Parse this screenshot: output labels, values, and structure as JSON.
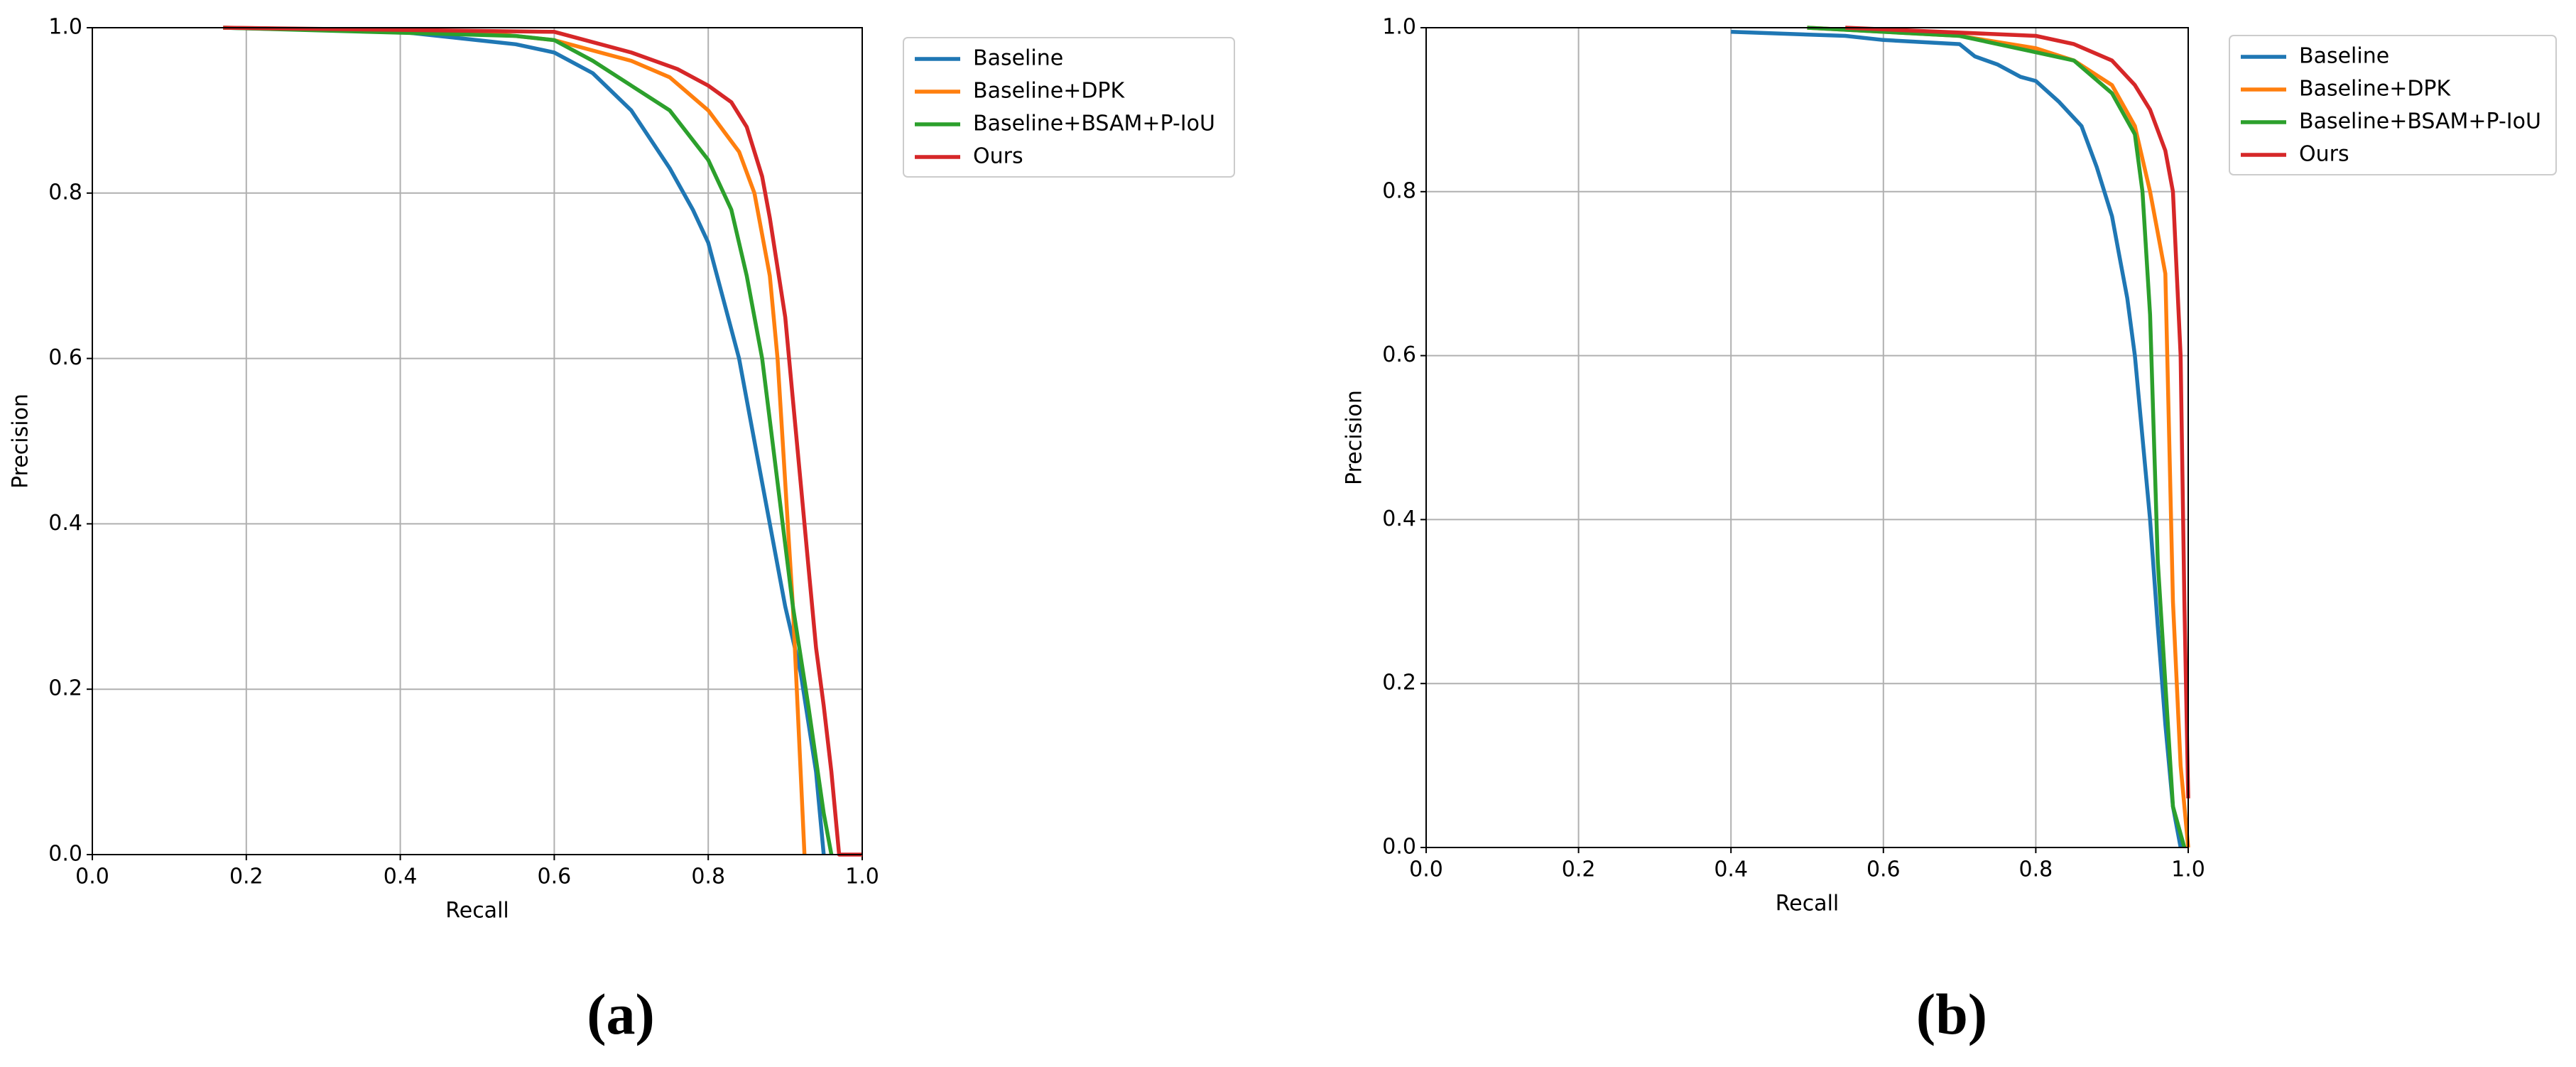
{
  "chart_data": [
    {
      "type": "line",
      "xlabel": "Recall",
      "ylabel": "Precision",
      "caption": "(a)",
      "xlim": [
        0,
        1
      ],
      "ylim": [
        0,
        1
      ],
      "xticks": [
        {
          "value": 0,
          "label": "0.0"
        },
        0.2,
        0.4,
        0.6,
        0.8,
        {
          "value": 1,
          "label": "1.0"
        }
      ],
      "yticks": [
        {
          "value": 0,
          "label": "0.0"
        },
        0.2,
        0.4,
        0.6,
        0.8,
        {
          "value": 1,
          "label": "1.0"
        }
      ],
      "grid": true,
      "legend": "outside-upper-right",
      "series": [
        {
          "name": "Baseline",
          "color": "#1f77b4",
          "x": [
            0.17,
            0.4,
            0.5,
            0.55,
            0.6,
            0.65,
            0.7,
            0.75,
            0.78,
            0.8,
            0.82,
            0.84,
            0.86,
            0.88,
            0.9,
            0.92,
            0.94,
            0.95
          ],
          "values": [
            1.0,
            0.995,
            0.985,
            0.98,
            0.97,
            0.945,
            0.9,
            0.83,
            0.78,
            0.74,
            0.67,
            0.6,
            0.5,
            0.4,
            0.3,
            0.22,
            0.1,
            0.0
          ]
        },
        {
          "name": "Baseline+DPK",
          "color": "#ff7f0e",
          "x": [
            0.17,
            0.5,
            0.6,
            0.7,
            0.75,
            0.8,
            0.84,
            0.86,
            0.88,
            0.89,
            0.9,
            0.91,
            0.92,
            0.925
          ],
          "values": [
            1.0,
            0.995,
            0.985,
            0.96,
            0.94,
            0.9,
            0.85,
            0.8,
            0.7,
            0.6,
            0.45,
            0.3,
            0.1,
            0.0
          ]
        },
        {
          "name": "Baseline+BSAM+P-IoU",
          "color": "#2ca02c",
          "x": [
            0.17,
            0.55,
            0.6,
            0.65,
            0.7,
            0.75,
            0.8,
            0.83,
            0.85,
            0.87,
            0.89,
            0.91,
            0.93,
            0.95,
            0.96
          ],
          "values": [
            1.0,
            0.99,
            0.985,
            0.96,
            0.93,
            0.9,
            0.84,
            0.78,
            0.7,
            0.6,
            0.45,
            0.3,
            0.18,
            0.05,
            0.0
          ]
        },
        {
          "name": "Ours",
          "color": "#d62728",
          "x": [
            0.17,
            0.6,
            0.7,
            0.76,
            0.8,
            0.83,
            0.85,
            0.87,
            0.88,
            0.9,
            0.91,
            0.92,
            0.93,
            0.94,
            0.95,
            0.96,
            0.97,
            1.0
          ],
          "values": [
            1.0,
            0.995,
            0.97,
            0.95,
            0.93,
            0.91,
            0.88,
            0.82,
            0.77,
            0.65,
            0.55,
            0.45,
            0.35,
            0.25,
            0.18,
            0.1,
            0.0,
            0.0
          ]
        }
      ]
    },
    {
      "type": "line",
      "xlabel": "Recall",
      "ylabel": "Precision",
      "caption": "(b)",
      "xlim": [
        0,
        1
      ],
      "ylim": [
        0,
        1
      ],
      "xticks": [
        {
          "value": 0,
          "label": "0.0"
        },
        0.2,
        0.4,
        0.6,
        0.8,
        {
          "value": 1,
          "label": "1.0"
        }
      ],
      "yticks": [
        {
          "value": 0,
          "label": "0.0"
        },
        0.2,
        0.4,
        0.6,
        0.8,
        {
          "value": 1,
          "label": "1.0"
        }
      ],
      "grid": true,
      "legend": "outside-upper-right",
      "series": [
        {
          "name": "Baseline",
          "color": "#1f77b4",
          "x": [
            0.4,
            0.55,
            0.6,
            0.7,
            0.72,
            0.75,
            0.78,
            0.8,
            0.83,
            0.86,
            0.88,
            0.9,
            0.91,
            0.92,
            0.93,
            0.94,
            0.95,
            0.96,
            0.97,
            0.98,
            0.99
          ],
          "values": [
            0.995,
            0.99,
            0.985,
            0.98,
            0.965,
            0.955,
            0.94,
            0.935,
            0.91,
            0.88,
            0.83,
            0.77,
            0.72,
            0.67,
            0.6,
            0.5,
            0.4,
            0.27,
            0.15,
            0.05,
            0.0
          ]
        },
        {
          "name": "Baseline+DPK",
          "color": "#ff7f0e",
          "x": [
            0.5,
            0.7,
            0.8,
            0.85,
            0.9,
            0.93,
            0.95,
            0.96,
            0.97,
            0.975,
            0.98,
            0.99,
            1.0
          ],
          "values": [
            1.0,
            0.99,
            0.975,
            0.96,
            0.93,
            0.88,
            0.8,
            0.75,
            0.7,
            0.5,
            0.3,
            0.1,
            0.0
          ]
        },
        {
          "name": "Baseline+BSAM+P-IoU",
          "color": "#2ca02c",
          "x": [
            0.5,
            0.7,
            0.8,
            0.85,
            0.9,
            0.93,
            0.94,
            0.95,
            0.955,
            0.96,
            0.97,
            0.98,
            0.995
          ],
          "values": [
            1.0,
            0.99,
            0.97,
            0.96,
            0.92,
            0.87,
            0.8,
            0.65,
            0.5,
            0.35,
            0.2,
            0.05,
            0.0
          ]
        },
        {
          "name": "Ours",
          "color": "#d62728",
          "x": [
            0.55,
            0.8,
            0.85,
            0.9,
            0.93,
            0.95,
            0.97,
            0.98,
            0.99,
            0.995,
            1.0
          ],
          "values": [
            1.0,
            0.99,
            0.98,
            0.96,
            0.93,
            0.9,
            0.85,
            0.8,
            0.6,
            0.3,
            0.06
          ]
        }
      ]
    }
  ]
}
